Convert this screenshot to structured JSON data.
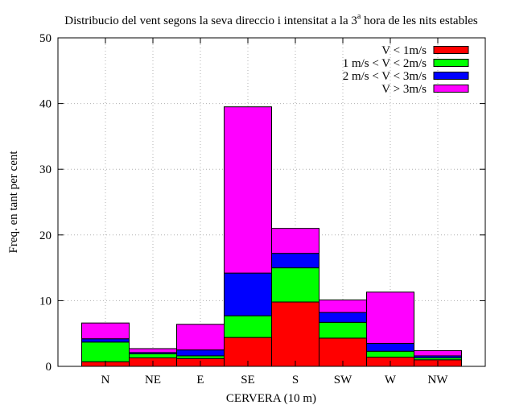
{
  "chart_data": {
    "type": "bar",
    "stacked": true,
    "title": "Distribucio del vent segons la seva direccio i intensitat a la 3",
    "title_superscript": "a",
    "title_rest": " hora de les nits estables",
    "xlabel": "CERVERA (10 m)",
    "ylabel": "Freq. en tant per cent",
    "ylim": [
      0,
      50
    ],
    "yticks": [
      "0",
      "10",
      "20",
      "30",
      "40",
      "50"
    ],
    "grid": true,
    "legend_position": "top-right",
    "categories": [
      "N",
      "NE",
      "E",
      "SE",
      "S",
      "SW",
      "W",
      "NW"
    ],
    "series": [
      {
        "name": "V < 1m/s",
        "color": "#ff0000",
        "values": [
          0.7,
          1.3,
          1.2,
          4.4,
          9.8,
          4.3,
          1.4,
          1.0
        ]
      },
      {
        "name": "1 m/s < V < 2m/s",
        "color": "#00ff00",
        "values": [
          3.0,
          0.6,
          0.4,
          3.3,
          5.2,
          2.4,
          0.9,
          0.3
        ]
      },
      {
        "name": "2 m/s < V < 3m/s",
        "color": "#0000ff",
        "values": [
          0.5,
          0.2,
          0.9,
          6.5,
          2.2,
          1.5,
          1.2,
          0.3
        ]
      },
      {
        "name": "V > 3m/s",
        "color": "#ff00ff",
        "values": [
          2.4,
          0.6,
          3.9,
          25.3,
          3.8,
          1.9,
          7.8,
          0.8
        ]
      }
    ]
  }
}
